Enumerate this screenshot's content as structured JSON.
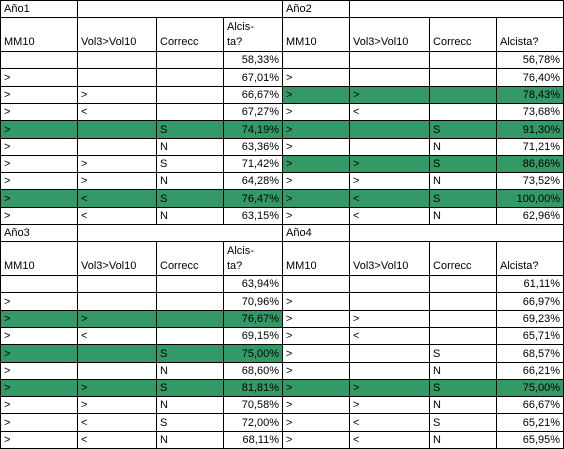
{
  "colors": {
    "highlight": "#339966",
    "grid": "#000000",
    "background": "#ffffff"
  },
  "blocks": [
    {
      "title": "Año1",
      "headers": {
        "mm10": "MM10",
        "vol": "Vol3>Vol10",
        "correcc": "Correcc",
        "alcista": "Alcis-\nta?"
      },
      "rows": [
        {
          "mm10": "",
          "vol": "",
          "correcc": "",
          "pct": "58,33%",
          "hl": false
        },
        {
          "mm10": ">",
          "vol": "",
          "correcc": "",
          "pct": "67,01%",
          "hl": false
        },
        {
          "mm10": ">",
          "vol": ">",
          "correcc": "",
          "pct": "66,67%",
          "hl": false
        },
        {
          "mm10": ">",
          "vol": "<",
          "correcc": "",
          "pct": "67,27%",
          "hl": false
        },
        {
          "mm10": ">",
          "vol": "",
          "correcc": "S",
          "pct": "74,19%",
          "hl": true
        },
        {
          "mm10": ">",
          "vol": "",
          "correcc": "N",
          "pct": "63,36%",
          "hl": false
        },
        {
          "mm10": ">",
          "vol": ">",
          "correcc": "S",
          "pct": "71,42%",
          "hl": false
        },
        {
          "mm10": ">",
          "vol": ">",
          "correcc": "N",
          "pct": "64,28%",
          "hl": false
        },
        {
          "mm10": ">",
          "vol": "<",
          "correcc": "S",
          "pct": "76,47%",
          "hl": true
        },
        {
          "mm10": ">",
          "vol": "<",
          "correcc": "N",
          "pct": "63,15%",
          "hl": false
        }
      ]
    },
    {
      "title": "Año2",
      "headers": {
        "mm10": "MM10",
        "vol": "Vol3>Vol10",
        "correcc": "Correcc",
        "alcista": "Alcista?"
      },
      "rows": [
        {
          "mm10": "",
          "vol": "",
          "correcc": "",
          "pct": "56,78%",
          "hl": false
        },
        {
          "mm10": ">",
          "vol": "",
          "correcc": "",
          "pct": "76,40%",
          "hl": false
        },
        {
          "mm10": ">",
          "vol": ">",
          "correcc": "",
          "pct": "78,43%",
          "hl": true
        },
        {
          "mm10": ">",
          "vol": "<",
          "correcc": "",
          "pct": "73,68%",
          "hl": false
        },
        {
          "mm10": ">",
          "vol": "",
          "correcc": "S",
          "pct": "91,30%",
          "hl": true
        },
        {
          "mm10": ">",
          "vol": "",
          "correcc": "N",
          "pct": "71,21%",
          "hl": false
        },
        {
          "mm10": ">",
          "vol": ">",
          "correcc": "S",
          "pct": "86,66%",
          "hl": true
        },
        {
          "mm10": ">",
          "vol": ">",
          "correcc": "N",
          "pct": "73,52%",
          "hl": false
        },
        {
          "mm10": ">",
          "vol": "<",
          "correcc": "S",
          "pct": "100,00%",
          "hl": true
        },
        {
          "mm10": ">",
          "vol": "<",
          "correcc": "N",
          "pct": "62,96%",
          "hl": false
        }
      ]
    },
    {
      "title": "Año3",
      "headers": {
        "mm10": "MM10",
        "vol": "Vol3>Vol10",
        "correcc": "Correcc",
        "alcista": "Alcis-\nta?"
      },
      "rows": [
        {
          "mm10": "",
          "vol": "",
          "correcc": "",
          "pct": "63,94%",
          "hl": false
        },
        {
          "mm10": ">",
          "vol": "",
          "correcc": "",
          "pct": "70,96%",
          "hl": false
        },
        {
          "mm10": ">",
          "vol": ">",
          "correcc": "",
          "pct": "76,67%",
          "hl": true
        },
        {
          "mm10": ">",
          "vol": "<",
          "correcc": "",
          "pct": "69,15%",
          "hl": false
        },
        {
          "mm10": ">",
          "vol": "",
          "correcc": "S",
          "pct": "75,00%",
          "hl": true
        },
        {
          "mm10": ">",
          "vol": "",
          "correcc": "N",
          "pct": "68,60%",
          "hl": false
        },
        {
          "mm10": ">",
          "vol": ">",
          "correcc": "S",
          "pct": "81,81%",
          "hl": true
        },
        {
          "mm10": ">",
          "vol": ">",
          "correcc": "N",
          "pct": "70,58%",
          "hl": false
        },
        {
          "mm10": ">",
          "vol": "<",
          "correcc": "S",
          "pct": "72,00%",
          "hl": false
        },
        {
          "mm10": ">",
          "vol": "<",
          "correcc": "N",
          "pct": "68,11%",
          "hl": false
        }
      ]
    },
    {
      "title": "Año4",
      "headers": {
        "mm10": "MM10",
        "vol": "Vol3>Vol10",
        "correcc": "Correcc",
        "alcista": "Alcista?"
      },
      "rows": [
        {
          "mm10": "",
          "vol": "",
          "correcc": "",
          "pct": "61,11%",
          "hl": false
        },
        {
          "mm10": ">",
          "vol": "",
          "correcc": "",
          "pct": "66,97%",
          "hl": false
        },
        {
          "mm10": ">",
          "vol": ">",
          "correcc": "",
          "pct": "69,23%",
          "hl": false
        },
        {
          "mm10": ">",
          "vol": "<",
          "correcc": "",
          "pct": "65,71%",
          "hl": false
        },
        {
          "mm10": ">",
          "vol": "",
          "correcc": "S",
          "pct": "68,57%",
          "hl": false
        },
        {
          "mm10": ">",
          "vol": "",
          "correcc": "N",
          "pct": "66,21%",
          "hl": false
        },
        {
          "mm10": ">",
          "vol": ">",
          "correcc": "S",
          "pct": "75,00%",
          "hl": true
        },
        {
          "mm10": ">",
          "vol": ">",
          "correcc": "N",
          "pct": "66,67%",
          "hl": false
        },
        {
          "mm10": ">",
          "vol": "<",
          "correcc": "S",
          "pct": "65,21%",
          "hl": false
        },
        {
          "mm10": ">",
          "vol": "<",
          "correcc": "N",
          "pct": "65,95%",
          "hl": false
        }
      ]
    }
  ]
}
